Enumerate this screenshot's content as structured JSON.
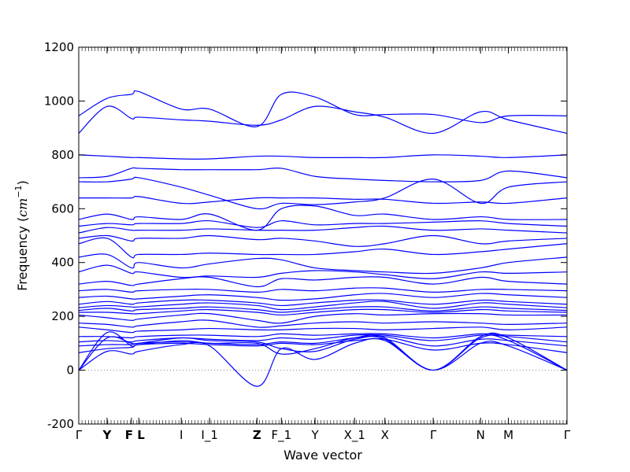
{
  "chart_data": {
    "type": "line",
    "title": "",
    "xlabel": "Wave vector",
    "ylabel": "Frequency (cm⁻¹)",
    "ylabel_parts": {
      "text": "Frequency (",
      "unit": "cm",
      "exp": "−1",
      "close": ")"
    },
    "ylim": [
      -200,
      1200
    ],
    "yticks": [
      -200,
      0,
      200,
      400,
      600,
      800,
      1000,
      1200
    ],
    "xlim": [
      0,
      1
    ],
    "grid": false,
    "legend": "none",
    "zero_line": {
      "y": 0,
      "style": "dotted"
    },
    "colors": {
      "band": "#0000ff",
      "axis": "#000000",
      "zero_line": "#808080"
    },
    "high_symmetry_points": [
      {
        "label": "Γ",
        "x": 0.0,
        "bold": false
      },
      {
        "label": "Y",
        "x": 0.058,
        "bold": true
      },
      {
        "label": "F",
        "x": 0.108,
        "bold": true
      },
      {
        "label": "L",
        "x": 0.123,
        "bold": true
      },
      {
        "label": "I",
        "x": 0.21,
        "bold": false
      },
      {
        "label": "I_1",
        "x": 0.268,
        "bold": false
      },
      {
        "label": "Z",
        "x": 0.365,
        "bold": true
      },
      {
        "label": "F_1",
        "x": 0.415,
        "bold": false
      },
      {
        "label": "Y",
        "x": 0.484,
        "bold": false
      },
      {
        "label": "X_1",
        "x": 0.565,
        "bold": false
      },
      {
        "label": "X",
        "x": 0.627,
        "bold": false
      },
      {
        "label": "Γ",
        "x": 0.726,
        "bold": false
      },
      {
        "label": "N",
        "x": 0.823,
        "bold": false
      },
      {
        "label": "M",
        "x": 0.88,
        "bold": false
      },
      {
        "label": "Γ",
        "x": 1.0,
        "bold": false
      }
    ],
    "knot_x": [
      0.0,
      0.058,
      0.108,
      0.123,
      0.21,
      0.268,
      0.365,
      0.415,
      0.484,
      0.565,
      0.627,
      0.726,
      0.823,
      0.88,
      1.0
    ],
    "series": [
      {
        "values": [
          0,
          140,
          90,
          95,
          110,
          100,
          100,
          60,
          80,
          120,
          120,
          0,
          120,
          110,
          0
        ]
      },
      {
        "values": [
          0,
          120,
          100,
          100,
          120,
          110,
          105,
          80,
          70,
          115,
          115,
          0,
          125,
          120,
          0
        ]
      },
      {
        "values": [
          0,
          70,
          60,
          70,
          95,
          90,
          -60,
          80,
          40,
          100,
          110,
          0,
          100,
          90,
          0
        ]
      },
      {
        "values": [
          65,
          80,
          85,
          95,
          100,
          95,
          90,
          100,
          95,
          110,
          115,
          75,
          100,
          95,
          65
        ]
      },
      {
        "values": [
          90,
          95,
          95,
          100,
          105,
          100,
          95,
          105,
          100,
          120,
          125,
          90,
          115,
          110,
          90
        ]
      },
      {
        "values": [
          105,
          110,
          105,
          110,
          120,
          115,
          110,
          120,
          115,
          130,
          130,
          110,
          130,
          125,
          105
        ]
      },
      {
        "values": [
          125,
          125,
          120,
          125,
          130,
          130,
          125,
          135,
          130,
          135,
          135,
          120,
          135,
          130,
          125
        ]
      },
      {
        "values": [
          160,
          150,
          140,
          145,
          150,
          155,
          150,
          150,
          155,
          155,
          150,
          155,
          160,
          150,
          160
        ]
      },
      {
        "values": [
          175,
          170,
          160,
          165,
          180,
          185,
          160,
          165,
          175,
          180,
          175,
          180,
          175,
          170,
          175
        ]
      },
      {
        "values": [
          205,
          195,
          185,
          190,
          205,
          210,
          185,
          175,
          200,
          210,
          205,
          210,
          210,
          205,
          205
        ]
      },
      {
        "values": [
          215,
          215,
          210,
          210,
          220,
          225,
          215,
          205,
          215,
          225,
          225,
          215,
          225,
          220,
          215
        ]
      },
      {
        "values": [
          222,
          230,
          220,
          225,
          230,
          235,
          225,
          215,
          225,
          235,
          235,
          220,
          235,
          230,
          222
        ]
      },
      {
        "values": [
          232,
          240,
          235,
          235,
          245,
          250,
          240,
          225,
          235,
          250,
          255,
          230,
          250,
          245,
          232
        ]
      },
      {
        "values": [
          245,
          255,
          245,
          250,
          260,
          260,
          250,
          240,
          250,
          260,
          260,
          245,
          260,
          255,
          245
        ]
      },
      {
        "values": [
          270,
          275,
          265,
          265,
          275,
          280,
          270,
          260,
          265,
          280,
          285,
          270,
          285,
          280,
          270
        ]
      },
      {
        "values": [
          295,
          300,
          290,
          295,
          300,
          300,
          290,
          300,
          295,
          305,
          305,
          290,
          300,
          300,
          295
        ]
      },
      {
        "values": [
          320,
          330,
          315,
          320,
          340,
          345,
          310,
          340,
          335,
          345,
          345,
          320,
          345,
          330,
          320
        ]
      },
      {
        "values": [
          365,
          390,
          360,
          365,
          345,
          350,
          345,
          360,
          370,
          365,
          355,
          340,
          365,
          360,
          365
        ]
      },
      {
        "values": [
          420,
          430,
          380,
          400,
          380,
          395,
          415,
          410,
          380,
          370,
          365,
          360,
          380,
          400,
          420
        ]
      },
      {
        "values": [
          470,
          490,
          420,
          430,
          430,
          435,
          430,
          430,
          430,
          440,
          450,
          430,
          440,
          450,
          470
        ]
      },
      {
        "values": [
          490,
          500,
          480,
          490,
          490,
          500,
          485,
          490,
          480,
          460,
          470,
          500,
          470,
          480,
          490
        ]
      },
      {
        "values": [
          510,
          530,
          520,
          520,
          520,
          525,
          520,
          520,
          520,
          530,
          535,
          520,
          525,
          520,
          510
        ]
      },
      {
        "values": [
          535,
          545,
          540,
          545,
          545,
          555,
          530,
          555,
          540,
          545,
          545,
          550,
          555,
          545,
          535
        ]
      },
      {
        "values": [
          560,
          580,
          560,
          570,
          560,
          580,
          520,
          600,
          610,
          575,
          580,
          560,
          570,
          560,
          560
        ]
      },
      {
        "values": [
          640,
          640,
          640,
          645,
          620,
          625,
          640,
          640,
          640,
          635,
          635,
          620,
          625,
          620,
          640
        ]
      },
      {
        "values": [
          700,
          700,
          710,
          715,
          680,
          650,
          600,
          620,
          615,
          625,
          640,
          710,
          620,
          680,
          700
        ]
      },
      {
        "values": [
          715,
          720,
          750,
          750,
          745,
          745,
          745,
          750,
          720,
          710,
          705,
          700,
          705,
          740,
          715
        ]
      },
      {
        "values": [
          800,
          795,
          790,
          790,
          785,
          785,
          795,
          795,
          790,
          790,
          790,
          800,
          795,
          790,
          800
        ]
      },
      {
        "values": [
          880,
          980,
          935,
          940,
          930,
          925,
          910,
          930,
          980,
          960,
          940,
          880,
          960,
          930,
          880
        ]
      },
      {
        "values": [
          945,
          1010,
          1025,
          1035,
          970,
          970,
          905,
          1025,
          1015,
          950,
          950,
          950,
          920,
          945,
          945
        ]
      }
    ]
  }
}
